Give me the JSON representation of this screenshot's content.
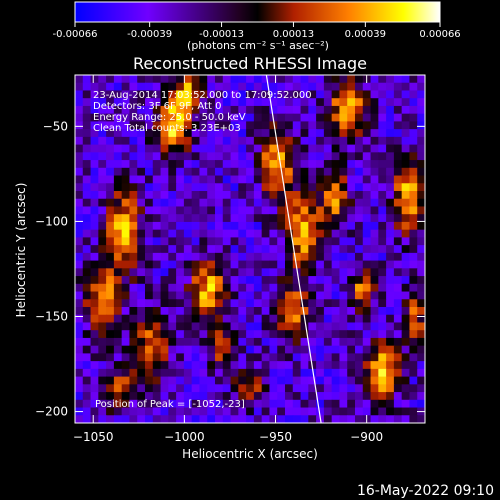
{
  "colorbar": {
    "ticks": [
      "-0.00066",
      "-0.00039",
      "-0.00013",
      "0.00013",
      "0.00039",
      "0.00066"
    ],
    "tick_values": [
      -0.00066,
      -0.00039,
      -0.00013,
      0.00013,
      0.00039,
      0.00066
    ],
    "range": [
      -0.00066,
      0.00066
    ],
    "units": "(photons cm⁻² s⁻¹ asec⁻²)"
  },
  "chart_data": {
    "type": "heatmap",
    "title": "Reconstructed RHESSI Image",
    "xlabel": "Heliocentric X (arcsec)",
    "ylabel": "Heliocentric Y (arcsec)",
    "xlim": [
      -1060,
      -868
    ],
    "ylim": [
      -206,
      -23
    ],
    "xticks": [
      -1050,
      -1000,
      -950,
      -900
    ],
    "yticks": [
      -50,
      -100,
      -150,
      -200
    ],
    "xtick_labels": [
      "−1050",
      "−1000",
      "−950",
      "−900"
    ],
    "ytick_labels": [
      "−50",
      "−100",
      "−150",
      "−200"
    ],
    "colormap": [
      "#0000ff",
      "#8000ff",
      "#000000",
      "#c03000",
      "#ff8000",
      "#ffff00",
      "#ffffff"
    ],
    "limb_line": {
      "x": [
        -955,
        -925
      ],
      "y": [
        -23,
        -206
      ]
    },
    "annotations": [
      "23-Aug-2014 17:03:52.000 to 17:09:52.000",
      "Detectors: 3F 6F 9F, Att 0",
      "Energy Range: 25.0 - 50.0 keV",
      "Clean    Total counts: 3.23E+03"
    ],
    "peak_label": "Position of Peak = [-1052,-23]"
  },
  "footer": {
    "timestamp": "16-May-2022 09:10"
  }
}
